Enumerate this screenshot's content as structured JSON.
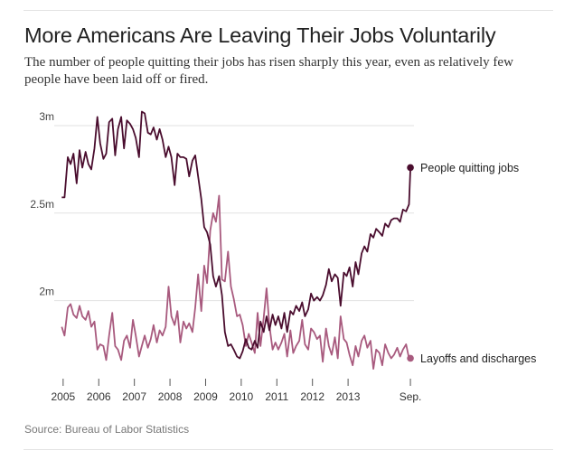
{
  "header": {
    "title": "More Americans Are Leaving Their Jobs Voluntarily",
    "subtitle": "The number of people quitting their jobs has risen sharply this year, even as relatively few people have been laid off or fired."
  },
  "footer": {
    "source": "Source: Bureau of Labor Statistics"
  },
  "chart_data": {
    "type": "line",
    "title": "More Americans Are Leaving Their Jobs Voluntarily",
    "xlabel": "",
    "ylabel": "",
    "ylim": [
      1.6,
      3.15
    ],
    "xlim": [
      2004.75,
      2014.85
    ],
    "grid": true,
    "y_ticks": [
      {
        "value": 3.0,
        "label": "3m"
      },
      {
        "value": 2.5,
        "label": "2.5m"
      },
      {
        "value": 2.0,
        "label": "2m"
      }
    ],
    "x_ticks": [
      {
        "value": 2005,
        "label": "2005"
      },
      {
        "value": 2006,
        "label": "2006"
      },
      {
        "value": 2007,
        "label": "2007"
      },
      {
        "value": 2008,
        "label": "2008"
      },
      {
        "value": 2009,
        "label": "2009"
      },
      {
        "value": 2010,
        "label": "2010"
      },
      {
        "value": 2011,
        "label": "2011"
      },
      {
        "value": 2012,
        "label": "2012"
      },
      {
        "value": 2013,
        "label": "2013"
      },
      {
        "value": 2014.75,
        "label": "Sep."
      }
    ],
    "series": [
      {
        "name": "People quitting jobs",
        "color": "#4a0d2e",
        "x": [
          2004.96,
          2005.04,
          2005.13,
          2005.21,
          2005.29,
          2005.38,
          2005.46,
          2005.54,
          2005.63,
          2005.71,
          2005.79,
          2005.88,
          2005.96,
          2006.04,
          2006.13,
          2006.21,
          2006.29,
          2006.38,
          2006.46,
          2006.54,
          2006.63,
          2006.71,
          2006.79,
          2006.88,
          2006.96,
          2007.04,
          2007.13,
          2007.21,
          2007.29,
          2007.38,
          2007.46,
          2007.54,
          2007.63,
          2007.71,
          2007.79,
          2007.88,
          2007.96,
          2008.04,
          2008.13,
          2008.21,
          2008.29,
          2008.38,
          2008.46,
          2008.54,
          2008.63,
          2008.71,
          2008.79,
          2008.88,
          2008.96,
          2009.04,
          2009.13,
          2009.21,
          2009.29,
          2009.38,
          2009.46,
          2009.54,
          2009.63,
          2009.71,
          2009.79,
          2009.88,
          2009.96,
          2010.04,
          2010.13,
          2010.21,
          2010.29,
          2010.38,
          2010.46,
          2010.54,
          2010.63,
          2010.71,
          2010.79,
          2010.88,
          2010.96,
          2011.04,
          2011.13,
          2011.21,
          2011.29,
          2011.38,
          2011.46,
          2011.54,
          2011.63,
          2011.71,
          2011.79,
          2011.88,
          2011.96,
          2012.04,
          2012.13,
          2012.21,
          2012.29,
          2012.38,
          2012.46,
          2012.54,
          2012.63,
          2012.71,
          2012.79,
          2012.88,
          2012.96,
          2013.04,
          2013.13,
          2013.21,
          2013.29,
          2013.38,
          2013.46,
          2013.54,
          2013.63,
          2013.71,
          2013.79,
          2013.88,
          2013.96,
          2014.04,
          2014.13,
          2014.21,
          2014.29,
          2014.38,
          2014.46,
          2014.54,
          2014.63,
          2014.71,
          2014.75
        ],
        "values": [
          2.59,
          2.59,
          2.82,
          2.78,
          2.84,
          2.67,
          2.86,
          2.76,
          2.85,
          2.78,
          2.75,
          2.87,
          3.05,
          2.9,
          2.81,
          2.84,
          3.02,
          3.04,
          2.83,
          2.98,
          3.05,
          2.87,
          3.03,
          3.01,
          2.98,
          2.93,
          2.82,
          3.08,
          3.07,
          2.96,
          2.95,
          2.99,
          2.92,
          2.98,
          2.92,
          2.82,
          2.88,
          2.82,
          2.66,
          2.84,
          2.82,
          2.82,
          2.81,
          2.71,
          2.8,
          2.83,
          2.71,
          2.58,
          2.42,
          2.39,
          2.32,
          2.14,
          2.08,
          2.14,
          2.03,
          1.82,
          1.74,
          1.75,
          1.72,
          1.68,
          1.67,
          1.71,
          1.78,
          1.73,
          1.72,
          1.77,
          1.73,
          1.88,
          1.82,
          1.91,
          1.83,
          1.92,
          1.86,
          1.91,
          1.84,
          1.93,
          1.82,
          1.94,
          1.92,
          1.97,
          1.94,
          1.99,
          1.91,
          1.95,
          2.04,
          2.0,
          2.02,
          2.0,
          2.03,
          2.09,
          2.18,
          2.11,
          2.15,
          2.13,
          1.97,
          2.16,
          2.14,
          2.19,
          2.08,
          2.22,
          2.15,
          2.27,
          2.31,
          2.28,
          2.38,
          2.36,
          2.41,
          2.39,
          2.37,
          2.44,
          2.42,
          2.46,
          2.47,
          2.47,
          2.45,
          2.52,
          2.51,
          2.55,
          2.76
        ],
        "label_text": "People quitting jobs",
        "end_label_value": 2.76
      },
      {
        "name": "Layoffs and discharges",
        "color": "#a85a7e",
        "x": [
          2004.96,
          2005.04,
          2005.13,
          2005.21,
          2005.29,
          2005.38,
          2005.46,
          2005.54,
          2005.63,
          2005.71,
          2005.79,
          2005.88,
          2005.96,
          2006.04,
          2006.13,
          2006.21,
          2006.29,
          2006.38,
          2006.46,
          2006.54,
          2006.63,
          2006.71,
          2006.79,
          2006.88,
          2006.96,
          2007.04,
          2007.13,
          2007.21,
          2007.29,
          2007.38,
          2007.46,
          2007.54,
          2007.63,
          2007.71,
          2007.79,
          2007.88,
          2007.96,
          2008.04,
          2008.13,
          2008.21,
          2008.29,
          2008.38,
          2008.46,
          2008.54,
          2008.63,
          2008.71,
          2008.79,
          2008.88,
          2008.96,
          2009.04,
          2009.13,
          2009.21,
          2009.29,
          2009.38,
          2009.46,
          2009.54,
          2009.63,
          2009.71,
          2009.79,
          2009.88,
          2009.96,
          2010.04,
          2010.13,
          2010.21,
          2010.29,
          2010.38,
          2010.46,
          2010.54,
          2010.63,
          2010.71,
          2010.79,
          2010.88,
          2010.96,
          2011.04,
          2011.13,
          2011.21,
          2011.29,
          2011.38,
          2011.46,
          2011.54,
          2011.63,
          2011.71,
          2011.79,
          2011.88,
          2011.96,
          2012.04,
          2012.13,
          2012.21,
          2012.29,
          2012.38,
          2012.46,
          2012.54,
          2012.63,
          2012.71,
          2012.79,
          2012.88,
          2012.96,
          2013.04,
          2013.13,
          2013.21,
          2013.29,
          2013.38,
          2013.46,
          2013.54,
          2013.63,
          2013.71,
          2013.79,
          2013.88,
          2013.96,
          2014.04,
          2014.13,
          2014.21,
          2014.29,
          2014.38,
          2014.46,
          2014.54,
          2014.63,
          2014.71,
          2014.75
        ],
        "values": [
          1.85,
          1.8,
          1.96,
          1.98,
          1.92,
          1.9,
          1.97,
          1.91,
          1.89,
          1.94,
          1.85,
          1.88,
          1.72,
          1.75,
          1.74,
          1.66,
          1.8,
          1.93,
          1.74,
          1.72,
          1.66,
          1.77,
          1.8,
          1.73,
          1.89,
          1.8,
          1.68,
          1.74,
          1.8,
          1.73,
          1.78,
          1.86,
          1.76,
          1.83,
          1.8,
          1.85,
          2.08,
          1.91,
          1.86,
          1.94,
          1.76,
          1.88,
          1.84,
          1.87,
          1.82,
          1.96,
          2.15,
          1.94,
          2.2,
          2.1,
          2.4,
          2.5,
          2.45,
          2.6,
          2.12,
          2.11,
          2.28,
          2.08,
          2.01,
          1.91,
          1.92,
          1.86,
          1.74,
          1.81,
          1.76,
          1.7,
          1.93,
          1.74,
          1.9,
          2.07,
          1.86,
          1.72,
          1.76,
          1.72,
          1.76,
          1.81,
          1.68,
          1.83,
          1.7,
          1.74,
          1.77,
          1.89,
          1.75,
          1.72,
          1.84,
          1.82,
          1.78,
          1.8,
          1.65,
          1.84,
          1.74,
          1.69,
          1.79,
          1.67,
          1.91,
          1.78,
          1.76,
          1.69,
          1.63,
          1.74,
          1.68,
          1.77,
          1.8,
          1.73,
          1.77,
          1.61,
          1.72,
          1.7,
          1.63,
          1.75,
          1.7,
          1.67,
          1.69,
          1.73,
          1.68,
          1.72,
          1.75,
          1.67,
          1.67
        ],
        "label_text": "Layoffs and discharges",
        "end_label_value": 1.67
      }
    ]
  }
}
